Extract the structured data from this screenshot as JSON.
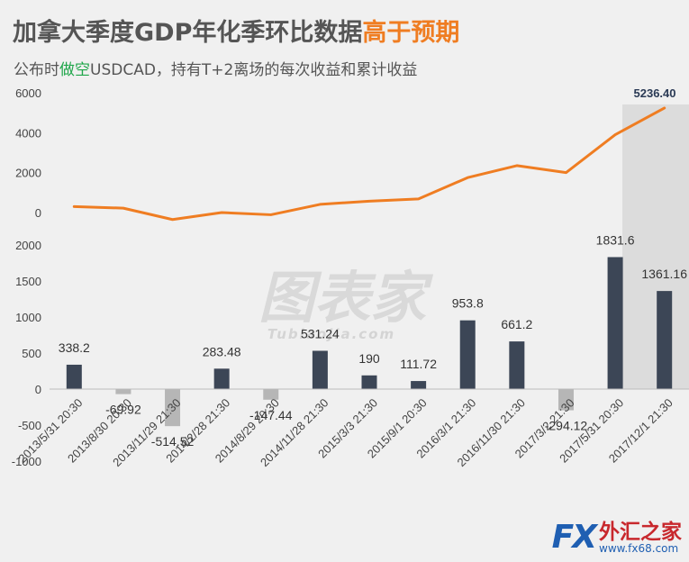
{
  "title": {
    "main": "加拿大季度GDP年化季环比数据",
    "highlight": "高于预期"
  },
  "subtitle": {
    "prefix": "公布时",
    "highlight": "做空",
    "suffix": "USDCAD，持有T+2离场的每次收益和累计收益"
  },
  "colors": {
    "line": "#ef7d22",
    "bar_positive": "#3c4656",
    "bar_negative": "#b6b6b6",
    "highlight_band": "#dcdcdc",
    "title_accent": "#ef7d22",
    "subtitle_accent": "#1fa64a"
  },
  "watermark": {
    "text": "图表家",
    "sub": "Tubiaojia.com"
  },
  "logo": {
    "fx": "FX",
    "cn": "外汇之家",
    "url": "www.fx68.com"
  },
  "chart_data": [
    {
      "type": "line",
      "name": "cumulative",
      "categories": [
        "2013/5/31 20:30",
        "2013/8/30 20:30",
        "2013/11/29 21:30",
        "2014/2/28 21:30",
        "2014/8/29 20:30",
        "2014/11/28 21:30",
        "2015/3/3 21:30",
        "2015/9/1 20:30",
        "2016/3/1 21:30",
        "2016/11/30 21:30",
        "2017/3/2 21:30",
        "2017/5/31 20:30",
        "2017/12/1 21:30"
      ],
      "values": [
        300,
        220,
        -350,
        0,
        -110,
        410,
        570,
        680,
        1750,
        2350,
        2000,
        3900,
        5236.4
      ],
      "yticks": [
        0,
        2000,
        4000,
        6000
      ],
      "ylim": [
        -500,
        6000
      ],
      "last_label": "5236.40"
    },
    {
      "type": "bar",
      "name": "per_trade",
      "categories": [
        "2013/5/31 20:30",
        "2013/8/30 20:30",
        "2013/11/29 21:30",
        "2014/2/28 21:30",
        "2014/8/29 20:30",
        "2014/11/28 21:30",
        "2015/3/3 21:30",
        "2015/9/1 20:30",
        "2016/3/1 21:30",
        "2016/11/30 21:30",
        "2017/3/2 21:30",
        "2017/5/31 20:30",
        "2017/12/1 21:30"
      ],
      "values": [
        338.2,
        -69.92,
        -514.52,
        283.48,
        -147.44,
        531.24,
        190,
        111.72,
        953.8,
        661.2,
        -294.12,
        1831.6,
        1361.16
      ],
      "labels": [
        "338.2",
        "-69.92",
        "-514.52",
        "283.48",
        "-147.44",
        "531.24",
        "190",
        "111.72",
        "953.8",
        "661.2",
        "-294.12",
        "1831.6",
        "1361.16"
      ],
      "yticks": [
        -1000,
        -500,
        0,
        500,
        1000,
        1500,
        2000
      ],
      "ytick_labels": [
        "-1000",
        "-500",
        "0",
        "500",
        "1000",
        "1500",
        "2000"
      ],
      "ylim": [
        -1000,
        2000
      ]
    }
  ],
  "line_ytick_labels": [
    "0",
    "2000",
    "4000",
    "6000"
  ]
}
